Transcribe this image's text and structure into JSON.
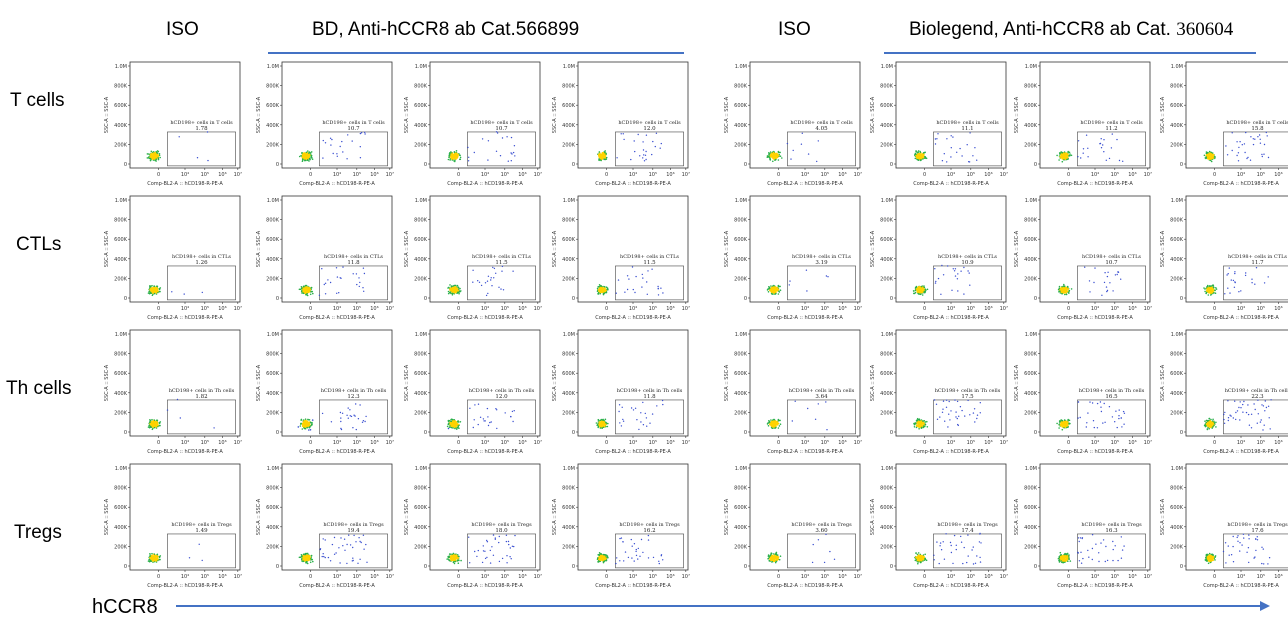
{
  "headers": {
    "iso_left": "ISO",
    "bd": "BD, Anti-hCCR8 ab Cat.566899",
    "iso_right": "ISO",
    "biolegend_prefix": "Biolegend, Anti-hCCR8 ab Cat. ",
    "biolegend_cat": "360604"
  },
  "row_labels": [
    "T cells",
    "CTLs",
    "Th cells",
    "Tregs"
  ],
  "x_axis_title": "hCCR8",
  "colors": {
    "accent_line": "#4472c4",
    "dots": "#3a4fd0",
    "dense": "#ffd200"
  },
  "chart_data": {
    "type": "scatter",
    "plot_type": "flow cytometry dot plot grid",
    "xlabel": "Comp-BL2-A :: hCD198-R-PE-A",
    "ylabel": "SSC-A :: SSC-A",
    "y_ticks": [
      "0",
      "200K",
      "400K",
      "600K",
      "800K",
      "1.0M"
    ],
    "x_ticks": [
      "0",
      "10⁴",
      "10⁵",
      "10⁶",
      "10⁷"
    ],
    "x_scale": "log",
    "gates": {
      "T cells": "hCD198+ cells in T cells",
      "CTLs": "hCD198+ cells in CTLs",
      "Th cells": "hCD198+ cells in Th cells",
      "Tregs": "hCD198+ cells in Tregs"
    },
    "columns": [
      "ISO",
      "BD 566899",
      "BD 566899",
      "BD 566899",
      "ISO",
      "Biolegend 360604",
      "Biolegend 360604",
      "Biolegend 360604"
    ],
    "values": [
      [
        "1.78",
        "10.7",
        "10.7",
        "12.0",
        "4.05",
        "11.1",
        "11.2",
        "15.8"
      ],
      [
        "1.26",
        "11.8",
        "11.5",
        "11.5",
        "3.19",
        "10.9",
        "10.7",
        "11.7"
      ],
      [
        "1.82",
        "12.3",
        "12.0",
        "11.8",
        "3.64",
        "17.5",
        "16.5",
        "22.3"
      ],
      [
        "1.49",
        "19.4",
        "18.0",
        "16.2",
        "3.60",
        "17.4",
        "16.3",
        "17.6"
      ]
    ]
  }
}
